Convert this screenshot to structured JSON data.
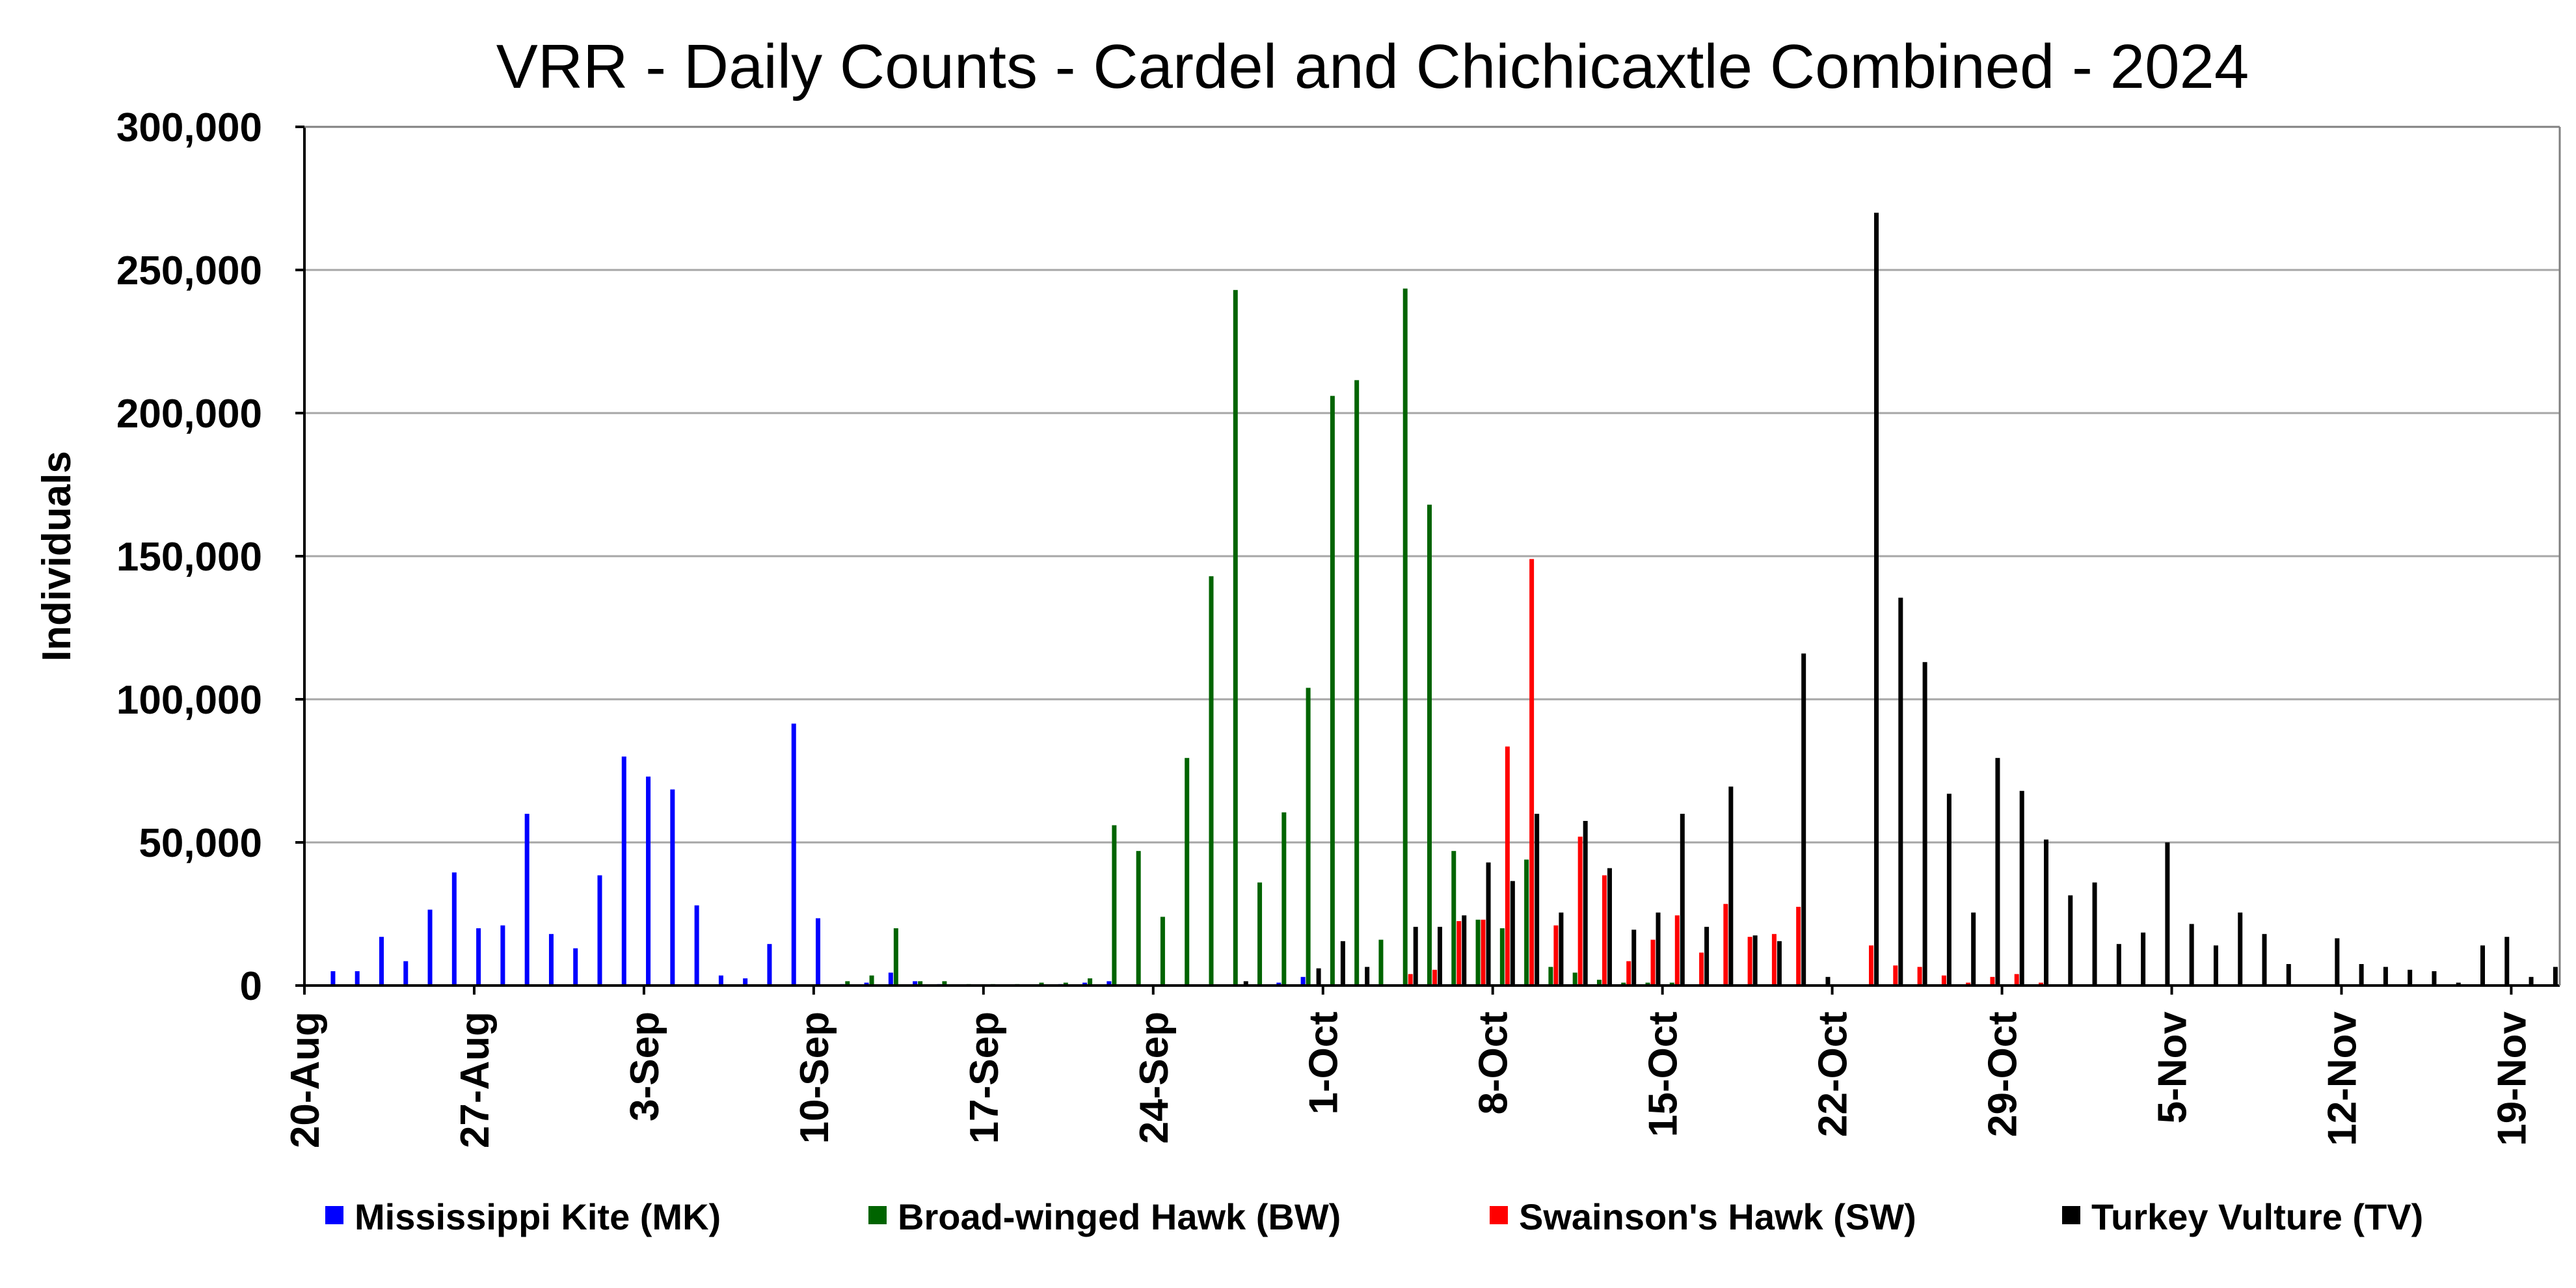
{
  "chart_data": {
    "type": "bar",
    "title": "VRR - Daily Counts - Cardel and Chichicaxtle Combined - 2024",
    "xlabel": "",
    "ylabel": "Individuals",
    "ylim": [
      0,
      300000
    ],
    "yticks": [
      0,
      50000,
      100000,
      150000,
      200000,
      250000,
      300000
    ],
    "ytick_labels": [
      "0",
      "50,000",
      "100,000",
      "150,000",
      "200,000",
      "250,000",
      "300,000"
    ],
    "x_start": "20-Aug",
    "num_days": 93,
    "xtick_labels": [
      "20-Aug",
      "27-Aug",
      "3-Sep",
      "10-Sep",
      "17-Sep",
      "24-Sep",
      "1-Oct",
      "8-Oct",
      "15-Oct",
      "22-Oct",
      "29-Oct",
      "5-Nov",
      "12-Nov",
      "19-Nov"
    ],
    "xtick_interval_days": 7,
    "grid": true,
    "legend_position": "bottom",
    "series": [
      {
        "name": "Mississippi Kite (MK)",
        "color": "#0000ff",
        "values": [
          0,
          5000,
          5000,
          17000,
          8500,
          26500,
          39500,
          20000,
          21000,
          60000,
          18000,
          13000,
          38500,
          80000,
          73000,
          68500,
          28000,
          3500,
          2500,
          14500,
          91500,
          23500,
          500,
          1000,
          4500,
          1500,
          500,
          0,
          0,
          0,
          0,
          500,
          1000,
          1500,
          0,
          0,
          0,
          0,
          0,
          0,
          1000,
          3000,
          0,
          0,
          0,
          0,
          0,
          0,
          0,
          0,
          0,
          0,
          0,
          0,
          0,
          0,
          0,
          0,
          0,
          0,
          0,
          0,
          0,
          0,
          0,
          0,
          0,
          0,
          0,
          0,
          0,
          0,
          0,
          0,
          0,
          0,
          0,
          0,
          0,
          0,
          0,
          0,
          0,
          0,
          0,
          0,
          0,
          0,
          0,
          0,
          0,
          0,
          0
        ]
      },
      {
        "name": "Broad-winged Hawk (BW)",
        "color": "#006400",
        "values": [
          0,
          0,
          0,
          0,
          0,
          0,
          0,
          0,
          0,
          0,
          0,
          0,
          0,
          0,
          0,
          0,
          0,
          0,
          0,
          0,
          0,
          0,
          1500,
          3500,
          20000,
          1500,
          1500,
          500,
          500,
          500,
          1000,
          1000,
          2500,
          56000,
          47000,
          24000,
          79500,
          143000,
          243000,
          36000,
          60500,
          104000,
          206000,
          211500,
          16000,
          243500,
          168000,
          47000,
          23000,
          20000,
          44000,
          6500,
          4500,
          2000,
          1000,
          1000,
          1000,
          0,
          0,
          0,
          0,
          0,
          0,
          0,
          0,
          0,
          0,
          0,
          0,
          0,
          0,
          0,
          0,
          0,
          0,
          0,
          0,
          0,
          0,
          0,
          0,
          0,
          0,
          0,
          0,
          0,
          0,
          0,
          0,
          0,
          0,
          0,
          0
        ]
      },
      {
        "name": "Swainson's Hawk (SW)",
        "color": "#ff0000",
        "values": [
          0,
          0,
          0,
          0,
          0,
          0,
          0,
          0,
          0,
          0,
          0,
          0,
          0,
          0,
          0,
          0,
          0,
          0,
          0,
          0,
          0,
          0,
          0,
          0,
          0,
          0,
          0,
          0,
          0,
          0,
          0,
          0,
          0,
          0,
          0,
          0,
          0,
          0,
          0,
          0,
          0,
          0,
          0,
          0,
          0,
          4000,
          5500,
          22500,
          23000,
          83500,
          149000,
          21000,
          52000,
          38500,
          8500,
          16000,
          24500,
          11500,
          28500,
          17000,
          18000,
          27500,
          0,
          0,
          14000,
          7000,
          6500,
          3500,
          1000,
          3000,
          4000,
          1000,
          0,
          0,
          0,
          0,
          0,
          0,
          0,
          0,
          0,
          0,
          0,
          0,
          0,
          0,
          0,
          0,
          0,
          0,
          0,
          0,
          0
        ]
      },
      {
        "name": "Turkey Vulture (TV)",
        "color": "#000000",
        "values": [
          0,
          0,
          0,
          0,
          0,
          0,
          0,
          0,
          0,
          0,
          0,
          0,
          0,
          0,
          0,
          0,
          0,
          0,
          0,
          0,
          0,
          0,
          0,
          0,
          0,
          0,
          0,
          0,
          0,
          0,
          0,
          0,
          0,
          0,
          0,
          0,
          0,
          0,
          1500,
          0,
          0,
          6000,
          15500,
          6500,
          0,
          20500,
          20500,
          24500,
          43000,
          36500,
          60000,
          25500,
          57500,
          41000,
          19500,
          25500,
          60000,
          20500,
          69500,
          17500,
          15500,
          116000,
          3000,
          0,
          270000,
          135500,
          113000,
          67000,
          25500,
          79500,
          68000,
          51000,
          31500,
          36000,
          14500,
          18500,
          50000,
          21500,
          14000,
          25500,
          18000,
          7500,
          0,
          16500,
          7500,
          6500,
          5500,
          5000,
          1000,
          14000,
          17000,
          3000,
          6500
        ]
      }
    ]
  }
}
